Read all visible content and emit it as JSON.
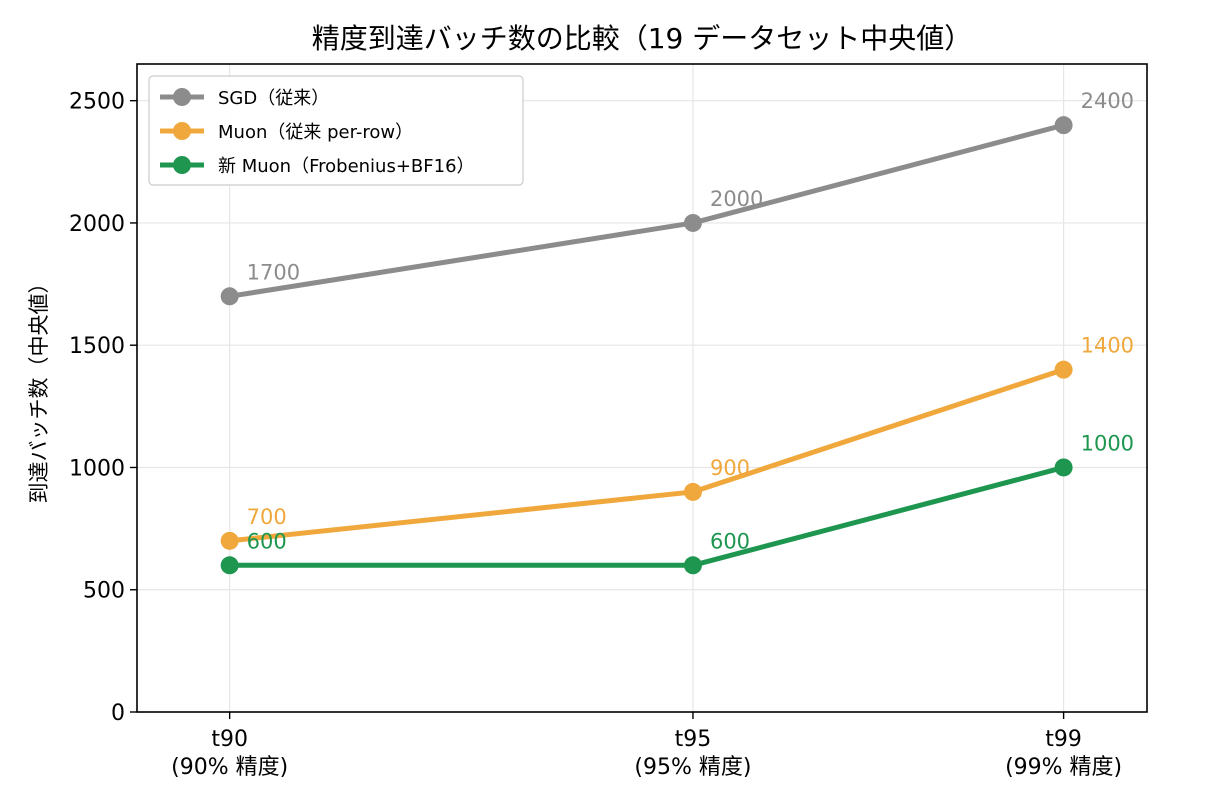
{
  "chart_data": {
    "type": "line",
    "title": "精度到達バッチ数の比較（19 データセット中央値）",
    "xlabel": "",
    "ylabel": "到達バッチ数（中央値）",
    "categories": [
      "t90\n(90% 精度)",
      "t95\n(95% 精度)",
      "t99\n(99% 精度)"
    ],
    "x_positions": [
      90,
      95,
      99
    ],
    "ylim": [
      0,
      2650
    ],
    "yticks": [
      0,
      500,
      1000,
      1500,
      2000,
      2500
    ],
    "grid": true,
    "legend_position": "top-left",
    "series": [
      {
        "name": "SGD（従来）",
        "color": "#8c8c8c",
        "values": [
          1700,
          2000,
          2400
        ],
        "labels": [
          "1700",
          "2000",
          "2400"
        ]
      },
      {
        "name": "Muon（従来 per-row）",
        "color": "#f0a83c",
        "values": [
          700,
          900,
          1400
        ],
        "labels": [
          "700",
          "900",
          "1400"
        ]
      },
      {
        "name": "新 Muon（Frobenius+BF16）",
        "color": "#1e9650",
        "values": [
          600,
          600,
          1000
        ],
        "labels": [
          "600",
          "600",
          "1000"
        ]
      }
    ]
  }
}
